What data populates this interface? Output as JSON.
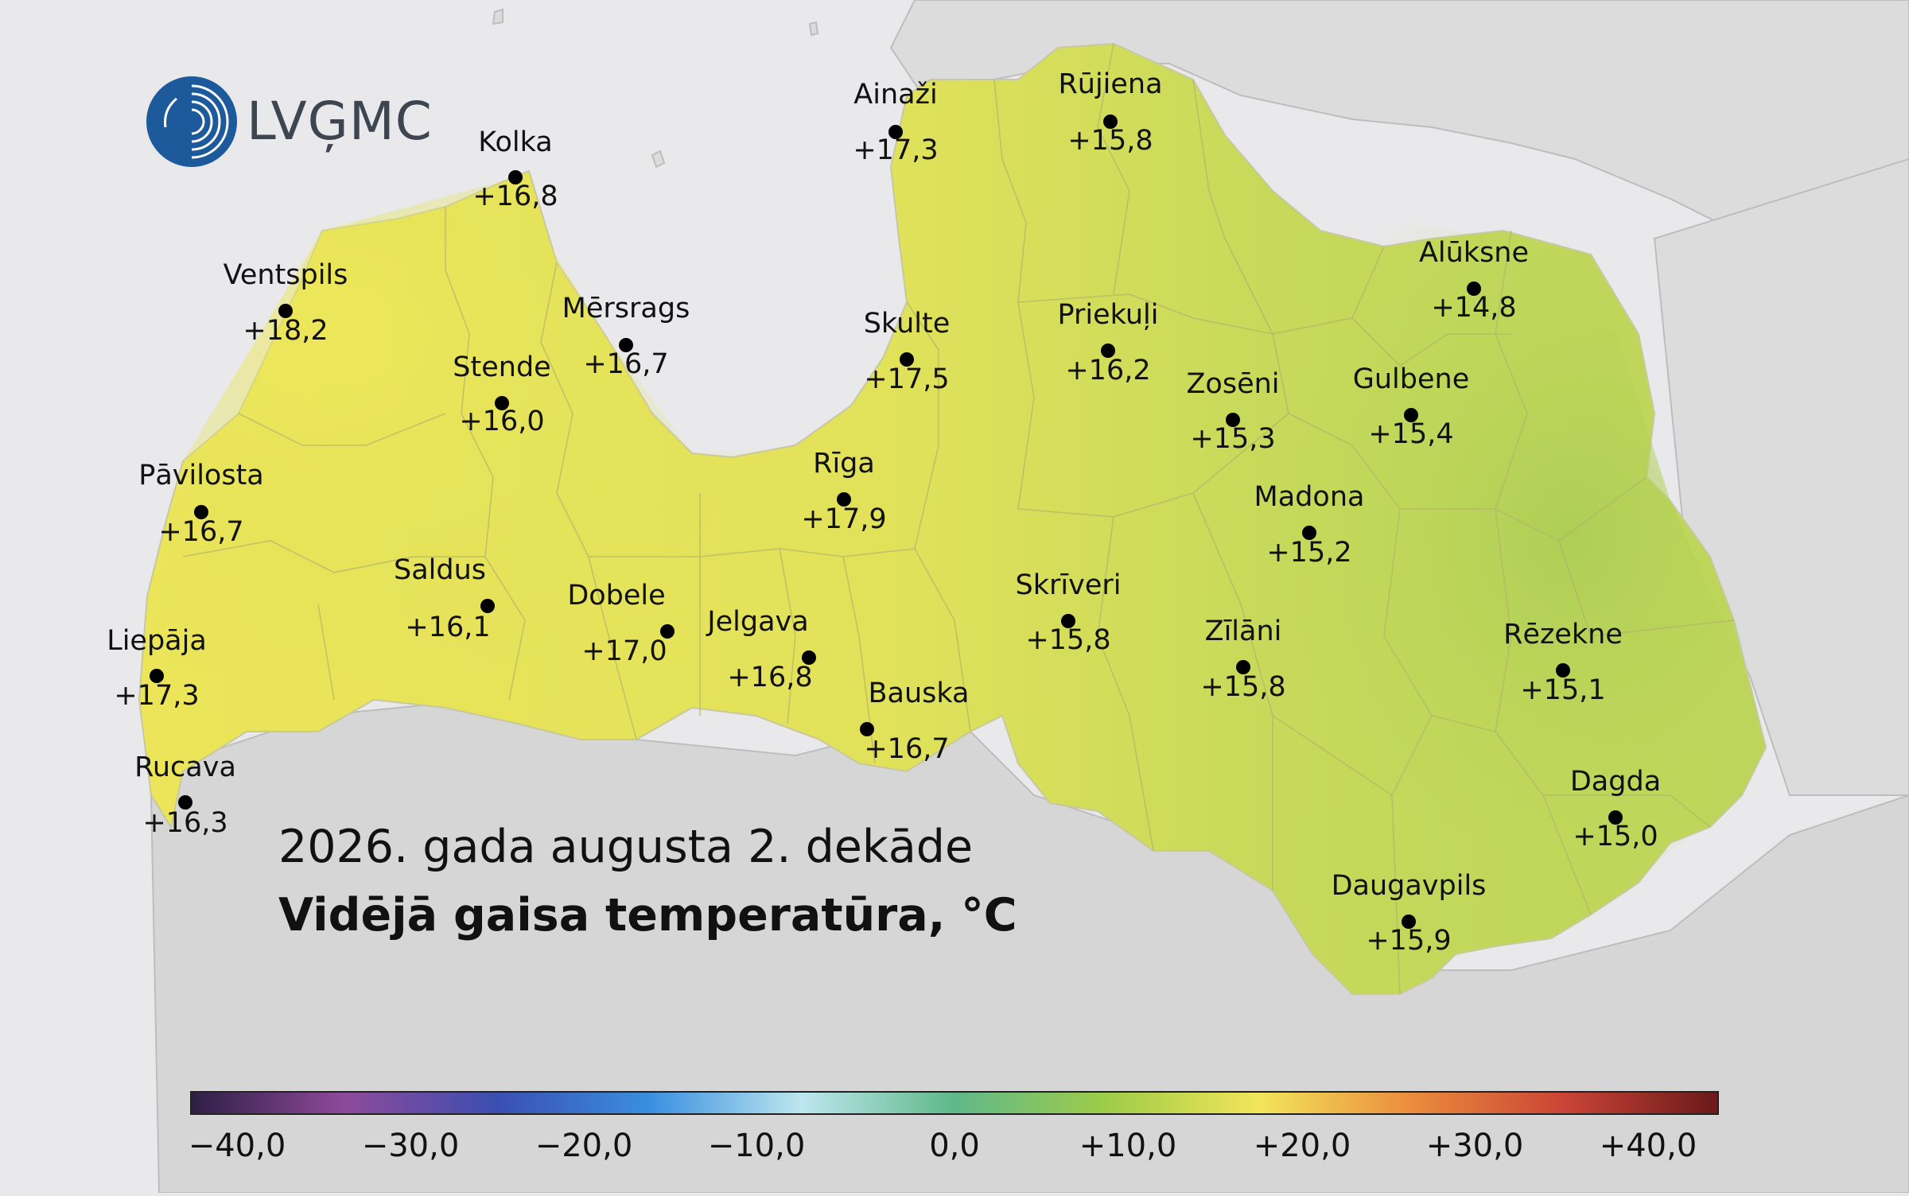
{
  "map": {
    "subtitle": "2026. gada augusta 2. dekāde",
    "title": "Vidējā gaisa temperatūra, °C",
    "logo_text": "LVĢMC",
    "colors": {
      "sea": "#e3e3e5",
      "land_outside": "#d9d9d9",
      "latvia_fill": "#d6de5a",
      "marker": "#000000",
      "text": "#111111"
    },
    "stations": [
      {
        "name": "Ainaži",
        "value": "+17,3"
      },
      {
        "name": "Rūjiena",
        "value": "+15,8"
      },
      {
        "name": "Kolka",
        "value": "+16,8"
      },
      {
        "name": "Ventspils",
        "value": "+18,2"
      },
      {
        "name": "Mērsrags",
        "value": "+16,7"
      },
      {
        "name": "Skulte",
        "value": "+17,5"
      },
      {
        "name": "Priekuļi",
        "value": "+16,2"
      },
      {
        "name": "Alūksne",
        "value": "+14,8"
      },
      {
        "name": "Stende",
        "value": "+16,0"
      },
      {
        "name": "Zosēni",
        "value": "+15,3"
      },
      {
        "name": "Gulbene",
        "value": "+15,4"
      },
      {
        "name": "Pāvilosta",
        "value": "+16,7"
      },
      {
        "name": "Rīga",
        "value": "+17,9"
      },
      {
        "name": "Madona",
        "value": "+15,2"
      },
      {
        "name": "Saldus",
        "value": "+16,1"
      },
      {
        "name": "Dobele",
        "value": "+17,0"
      },
      {
        "name": "Skrīveri",
        "value": "+15,8"
      },
      {
        "name": "Jelgava",
        "value": "+16,8"
      },
      {
        "name": "Zīlāni",
        "value": "+15,8"
      },
      {
        "name": "Rēzekne",
        "value": "+15,1"
      },
      {
        "name": "Liepāja",
        "value": "+17,3"
      },
      {
        "name": "Bauska",
        "value": "+16,7"
      },
      {
        "name": "Rucava",
        "value": "+16,3"
      },
      {
        "name": "Dagda",
        "value": "+15,0"
      },
      {
        "name": "Daugavpils",
        "value": "+15,9"
      }
    ]
  },
  "legend": {
    "ticks": [
      "−40,0",
      "−30,0",
      "−20,0",
      "−10,0",
      "0,0",
      "+10,0",
      "+20,0",
      "+30,0",
      "+40,0"
    ],
    "gradient_colors": [
      "#2e1f45",
      "#8e4a9a",
      "#3b4eb0",
      "#3a8fe0",
      "#bde6ee",
      "#5fb889",
      "#9fcc48",
      "#f2e55a",
      "#eb8b3c",
      "#c94436",
      "#6b1a1a"
    ]
  }
}
